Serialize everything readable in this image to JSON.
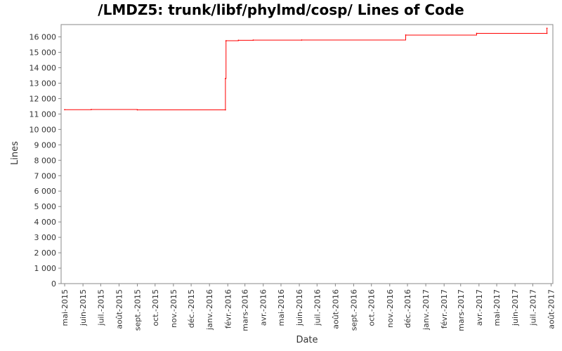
{
  "chart_data": {
    "type": "line",
    "title": "/LMDZ5: trunk/libf/phylmd/cosp/ Lines of Code",
    "xlabel": "Date",
    "ylabel": "Lines",
    "ylim": [
      0,
      16800
    ],
    "yticks": [
      0,
      1000,
      2000,
      3000,
      4000,
      5000,
      6000,
      7000,
      8000,
      9000,
      10000,
      11000,
      12000,
      13000,
      14000,
      15000,
      16000
    ],
    "ytick_labels": [
      "0",
      "1 000",
      "2 000",
      "3 000",
      "4 000",
      "5 000",
      "6 000",
      "7 000",
      "8 000",
      "9 000",
      "10 000",
      "11 000",
      "12 000",
      "13 000",
      "14 000",
      "15 000",
      "16 000"
    ],
    "xlim": [
      "2015-04-25",
      "2017-08-04"
    ],
    "xticks": [
      "2015-05-01",
      "2015-06-01",
      "2015-07-01",
      "2015-08-01",
      "2015-09-01",
      "2015-10-01",
      "2015-11-01",
      "2015-12-01",
      "2016-01-01",
      "2016-02-01",
      "2016-03-01",
      "2016-04-01",
      "2016-05-01",
      "2016-06-01",
      "2016-07-01",
      "2016-08-01",
      "2016-09-01",
      "2016-10-01",
      "2016-11-01",
      "2016-12-01",
      "2017-01-01",
      "2017-02-01",
      "2017-03-01",
      "2017-04-01",
      "2017-05-01",
      "2017-06-01",
      "2017-07-01",
      "2017-08-01"
    ],
    "xtick_labels": [
      "mai-2015",
      "juin-2015",
      "juil.-2015",
      "août-2015",
      "sept.-2015",
      "oct.-2015",
      "nov.-2015",
      "déc.-2015",
      "janv.-2016",
      "févr.-2016",
      "mars-2016",
      "avr.-2016",
      "mai-2016",
      "juin-2016",
      "juil.-2016",
      "août-2016",
      "sept.-2016",
      "oct.-2016",
      "nov.-2016",
      "déc.-2016",
      "janv.-2017",
      "févr.-2017",
      "mars-2017",
      "avr.-2017",
      "mai-2017",
      "juin-2017",
      "juil.-2017",
      "août-2017"
    ],
    "series": [
      {
        "color": "#ff0000",
        "step": true,
        "points": [
          {
            "x": "2015-05-01",
            "y": 11280
          },
          {
            "x": "2015-06-15",
            "y": 11290
          },
          {
            "x": "2015-09-01",
            "y": 11270
          },
          {
            "x": "2016-01-28",
            "y": 11270
          },
          {
            "x": "2016-01-28",
            "y": 13300
          },
          {
            "x": "2016-01-29",
            "y": 15750
          },
          {
            "x": "2016-02-19",
            "y": 15780
          },
          {
            "x": "2016-03-15",
            "y": 15790
          },
          {
            "x": "2016-06-05",
            "y": 15800
          },
          {
            "x": "2016-11-28",
            "y": 16120
          },
          {
            "x": "2017-03-28",
            "y": 16230
          },
          {
            "x": "2017-07-25",
            "y": 16230
          },
          {
            "x": "2017-07-25",
            "y": 16560
          }
        ]
      }
    ],
    "grid": false,
    "legend": "none"
  }
}
